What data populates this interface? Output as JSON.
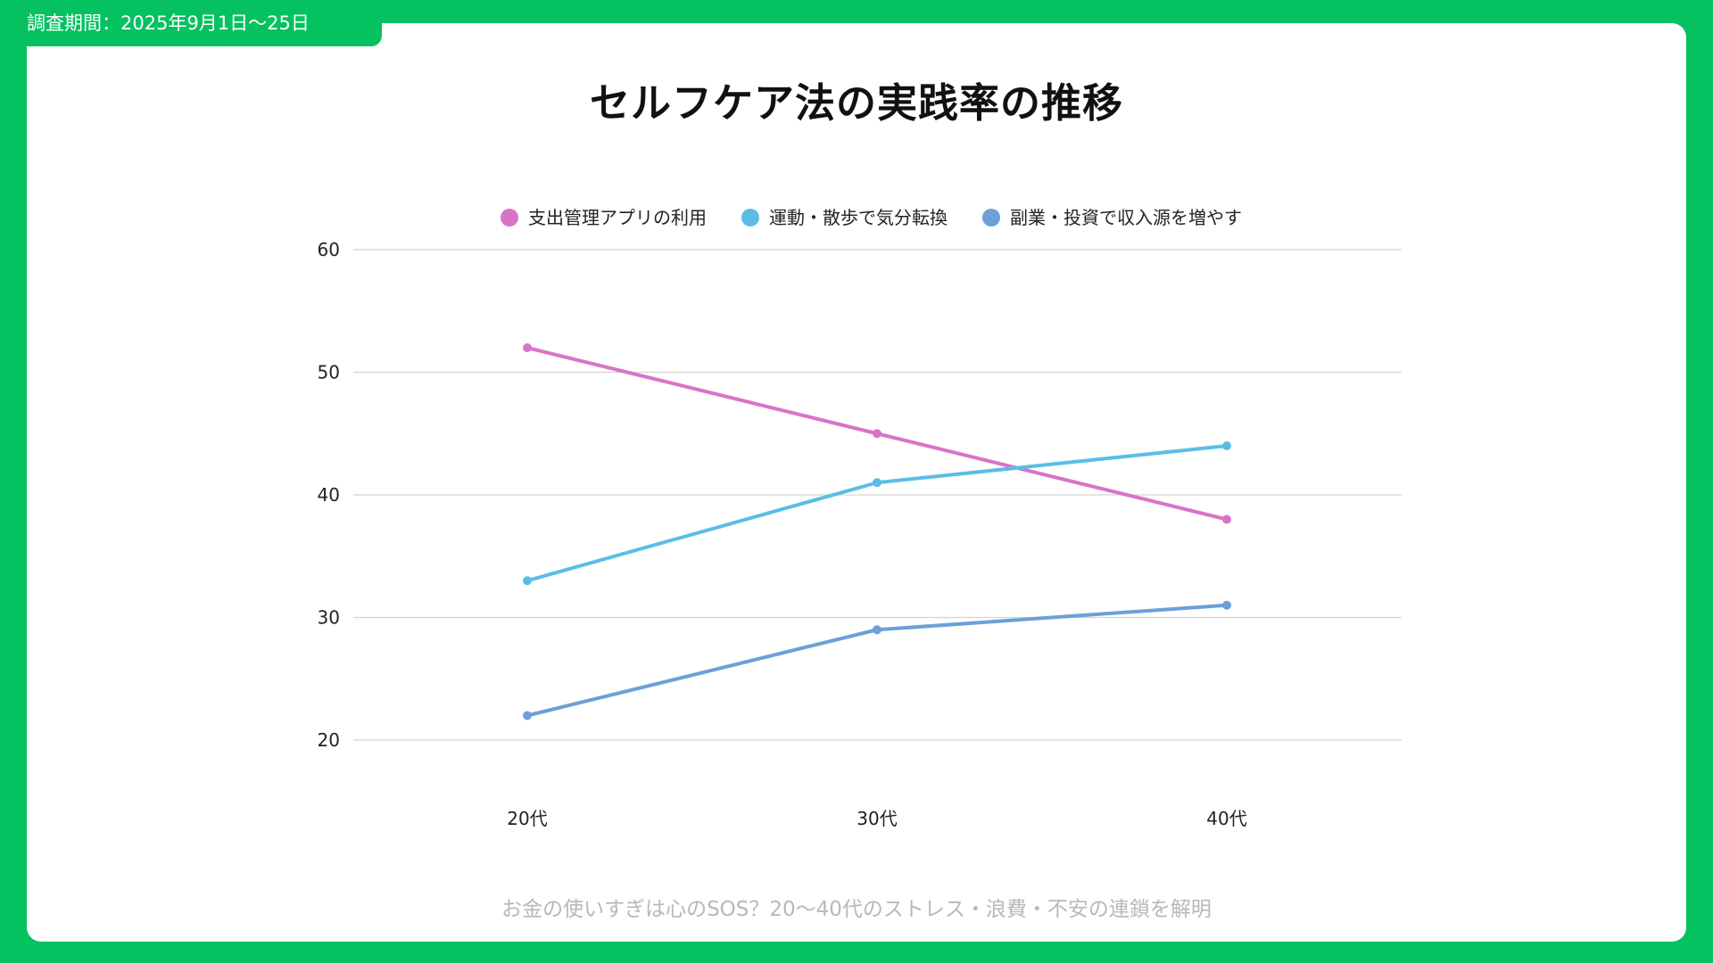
{
  "header": {
    "survey_period": "調査期間：2025年9月1日〜25日"
  },
  "colors": {
    "frame": "#05c160",
    "card": "#ffffff",
    "grid": "#d4d4d4",
    "footer_text": "#b8b8b8"
  },
  "footer": {
    "caption": "お金の使いすぎは心のSOS？20〜40代のストレス・浪費・不安の連鎖を解明"
  },
  "chart_data": {
    "type": "line",
    "title": "セルフケア法の実践率の推移",
    "xlabel": "",
    "ylabel": "",
    "categories": [
      "20代",
      "30代",
      "40代"
    ],
    "ylim": [
      20,
      60
    ],
    "yticks": [
      20,
      30,
      40,
      50,
      60
    ],
    "grid": true,
    "legend_position": "top",
    "series": [
      {
        "name": "支出管理アプリの利用",
        "color": "#d873c9",
        "values": [
          52,
          45,
          38
        ]
      },
      {
        "name": "運動・散歩で気分転換",
        "color": "#5bbde6",
        "values": [
          33,
          41,
          44
        ]
      },
      {
        "name": "副業・投資で収入源を増やす",
        "color": "#6d9fd8",
        "values": [
          22,
          29,
          31
        ]
      }
    ]
  }
}
